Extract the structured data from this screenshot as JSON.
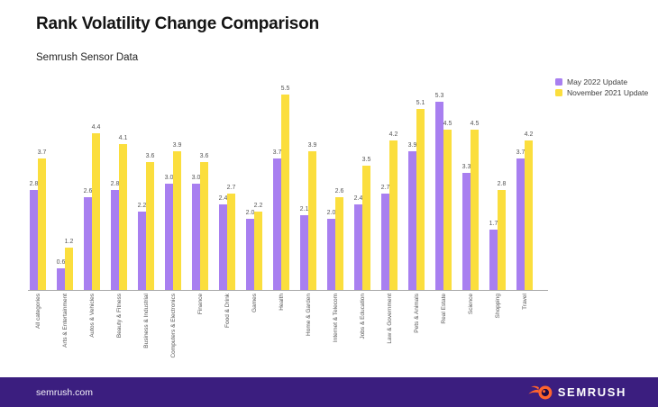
{
  "header": {
    "title": "Rank Volatility Change Comparison",
    "subtitle": "Semrush Sensor Data"
  },
  "chart_data": {
    "type": "bar",
    "title": "Rank Volatility Change Comparison",
    "subtitle": "Semrush Sensor Data",
    "categories": [
      "All categories",
      "Arts & Entertainment",
      "Autos & Vehicles",
      "Beauty & Fitness",
      "Business & Industrial",
      "Computers & Electronics",
      "Finance",
      "Food & Drink",
      "Games",
      "Health",
      "Home & Garden",
      "Internet & Telecom",
      "Jobs & Education",
      "Law & Government",
      "Pets & Animals",
      "Real Estate",
      "Science",
      "Shopping",
      "Travel"
    ],
    "series": [
      {
        "name": "May 2022 Update",
        "color": "#A87FF0",
        "values": [
          2.8,
          0.6,
          2.6,
          2.8,
          2.2,
          3.0,
          3.0,
          2.4,
          2.0,
          3.7,
          2.1,
          2.0,
          2.4,
          2.7,
          3.9,
          5.3,
          3.3,
          1.7,
          3.7
        ]
      },
      {
        "name": "November 2021 Update",
        "color": "#FBDE3D",
        "values": [
          3.7,
          1.2,
          4.4,
          4.1,
          3.6,
          3.9,
          3.6,
          2.7,
          2.2,
          5.5,
          3.9,
          2.6,
          3.5,
          4.2,
          5.1,
          4.5,
          4.5,
          2.8,
          4.2
        ]
      }
    ],
    "ylim": [
      0,
      5.5
    ],
    "value_labels": true,
    "grid": false,
    "legend_position": "top-right",
    "value_label_color": "#565656",
    "axis_line_color": "#a8a8a8"
  },
  "footer": {
    "url": "semrush.com",
    "logo_text": "SEMRUSH",
    "background": "#3B1E7F",
    "logo_orange": "#FF642D",
    "logo_inner_dark": "#1F0B46"
  }
}
